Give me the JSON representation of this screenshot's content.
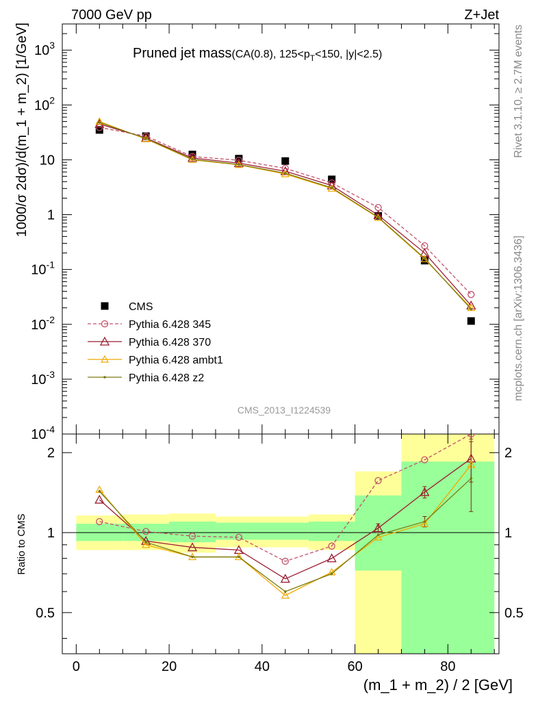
{
  "header": {
    "left": "7000 GeV pp",
    "right": "Z+Jet"
  },
  "side_labels": {
    "rivet": "Rivet 3.1.10, ≥ 2.7M events",
    "mcplots": "mcplots.cern.ch [arXiv:1306.3436]"
  },
  "chart_data": [
    {
      "type": "line",
      "panel": "main",
      "title_main": "Pruned jet mass",
      "title_sub": "(CA(0.8), 125<p_T<150, |y|<2.5)",
      "ylabel": "1000/σ 2dσ)/d(m_1 + m_2) [1/GeV]",
      "yscale": "log",
      "ylim": [
        0.0001,
        3000
      ],
      "xlim": [
        -3,
        91
      ],
      "yticks": [
        "10^3",
        "10^2",
        "10",
        "1",
        "10^-1",
        "10^-2",
        "10^-3",
        "10^-4"
      ],
      "watermark": "CMS_2013_I1224539",
      "legend_position": "lower-left",
      "x": [
        5,
        15,
        25,
        35,
        45,
        55,
        65,
        75,
        85
      ],
      "series": [
        {
          "name": "CMS",
          "style": "data",
          "color": "#000000",
          "values": [
            35,
            27,
            12.5,
            10.5,
            9.5,
            4.4,
            0.95,
            0.145,
            0.0115
          ]
        },
        {
          "name": "Pythia 6.428 345",
          "style": "dashed-circle",
          "color": "#c0506a",
          "values": [
            39,
            27,
            11.5,
            9.8,
            7.0,
            3.8,
            1.35,
            0.27,
            0.035
          ]
        },
        {
          "name": "Pythia 6.428 370",
          "style": "solid-triangle",
          "color": "#9b1b30",
          "values": [
            45,
            25,
            10.8,
            8.7,
            6.2,
            3.4,
            0.98,
            0.2,
            0.022
          ]
        },
        {
          "name": "Pythia 6.428 ambt1",
          "style": "solid-triangle-small",
          "color": "#f0a800",
          "values": [
            50,
            24,
            10.0,
            8.1,
            5.5,
            3.0,
            0.88,
            0.155,
            0.02
          ]
        },
        {
          "name": "Pythia 6.428 z2",
          "style": "solid-dot",
          "color": "#7a7a10",
          "values": [
            48,
            24.5,
            10.2,
            8.2,
            5.7,
            3.1,
            0.9,
            0.16,
            0.019
          ]
        }
      ]
    },
    {
      "type": "line",
      "panel": "ratio",
      "ylabel": "Ratio to CMS",
      "xlabel": "(m_1 + m_2) / 2 [GeV]",
      "yscale": "log",
      "ylim": [
        0.35,
        2.35
      ],
      "xlim": [
        -3,
        91
      ],
      "xticks": [
        0,
        20,
        40,
        60,
        80
      ],
      "yticks": [
        0.5,
        1,
        2
      ],
      "bands": [
        {
          "x0": 0,
          "x1": 10,
          "green": [
            0.93,
            1.08
          ],
          "yellow": [
            0.86,
            1.16
          ]
        },
        {
          "x0": 10,
          "x1": 20,
          "green": [
            0.93,
            1.08
          ],
          "yellow": [
            0.86,
            1.17
          ]
        },
        {
          "x0": 20,
          "x1": 30,
          "green": [
            0.92,
            1.1
          ],
          "yellow": [
            0.84,
            1.18
          ]
        },
        {
          "x0": 30,
          "x1": 50,
          "green": [
            0.94,
            1.09
          ],
          "yellow": [
            0.88,
            1.15
          ]
        },
        {
          "x0": 50,
          "x1": 60,
          "green": [
            0.93,
            1.1
          ],
          "yellow": [
            0.86,
            1.17
          ]
        },
        {
          "x0": 60,
          "x1": 70,
          "green": [
            0.72,
            1.38
          ],
          "yellow": [
            0.35,
            1.7
          ]
        },
        {
          "x0": 70,
          "x1": 90,
          "green": [
            0.35,
            1.85
          ],
          "yellow": [
            0.35,
            2.35
          ]
        }
      ],
      "x": [
        5,
        15,
        25,
        35,
        45,
        55,
        65,
        75,
        85
      ],
      "series": [
        {
          "name": "Pythia 6.428 345",
          "style": "dashed-circle",
          "color": "#c0506a",
          "values": [
            1.1,
            1.01,
            0.97,
            0.96,
            0.78,
            0.89,
            1.57,
            1.88,
            3.0
          ]
        },
        {
          "name": "Pythia 6.428 370",
          "style": "solid-triangle",
          "color": "#9b1b30",
          "values": [
            1.33,
            0.93,
            0.88,
            0.86,
            0.67,
            0.8,
            1.04,
            1.42,
            1.9
          ]
        },
        {
          "name": "Pythia 6.428 ambt1",
          "style": "solid-triangle-small",
          "color": "#f0a800",
          "values": [
            1.45,
            0.9,
            0.81,
            0.81,
            0.58,
            0.71,
            0.96,
            1.08,
            1.8
          ]
        },
        {
          "name": "Pythia 6.428 z2",
          "style": "solid-dot",
          "color": "#7a7a10",
          "values": [
            1.43,
            0.92,
            0.81,
            0.81,
            0.6,
            0.7,
            0.98,
            1.1,
            1.6
          ]
        }
      ]
    }
  ]
}
